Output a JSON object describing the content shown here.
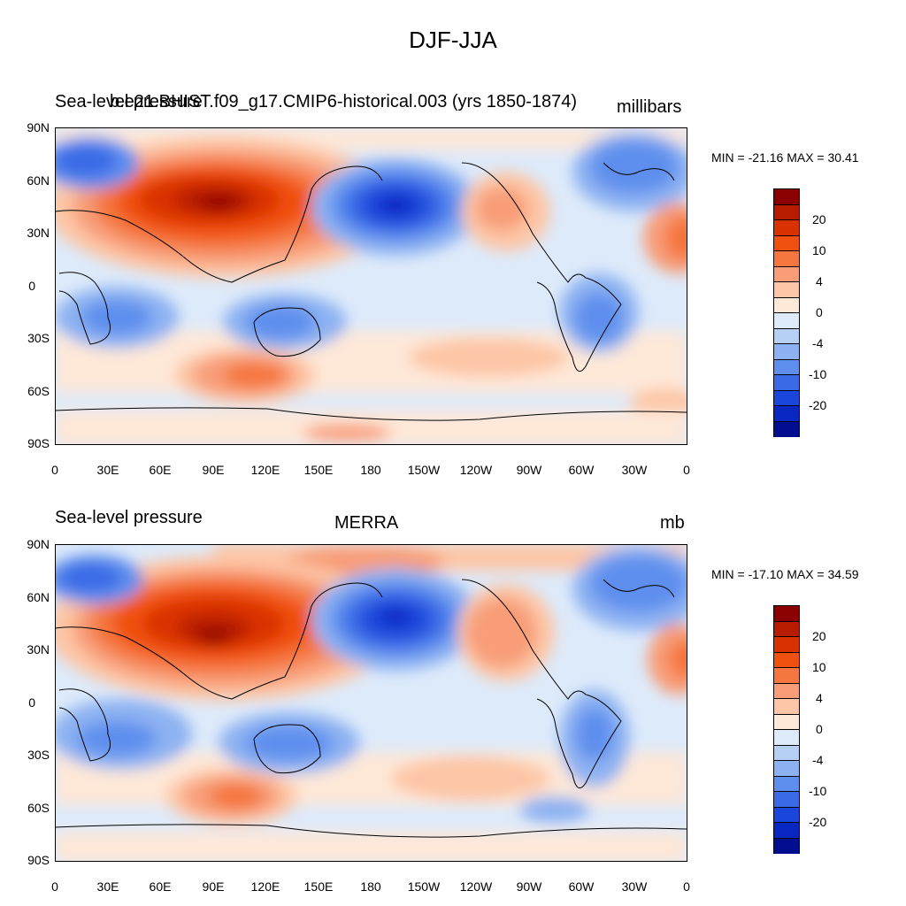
{
  "figure_title": "DJF-JJA",
  "colors": {
    "levels": [
      "#8b0000",
      "#b71c00",
      "#d93100",
      "#f05010",
      "#f5763e",
      "#f89d78",
      "#fdc6a6",
      "#fee8d8",
      "#ddeafa",
      "#b6d0f5",
      "#8db2f2",
      "#5e8fee",
      "#3a6ae6",
      "#1a46dc",
      "#0928c1",
      "#000e8f"
    ]
  },
  "panels": [
    {
      "left_title": "Sea-level pressure",
      "center_title": "b.e21.BHIST.f09_g17.CMIP6-historical.003 (yrs 1850-1874)",
      "right_title": "millibars",
      "stats": "MIN = -21.16 MAX =  30.41",
      "colorbar_labels": [
        "20",
        "10",
        "4",
        "0",
        "-4",
        "-10",
        "-20"
      ]
    },
    {
      "left_title": "Sea-level pressure",
      "center_title": "MERRA",
      "right_title": "mb",
      "stats": "MIN = -17.10 MAX =  34.59",
      "colorbar_labels": [
        "20",
        "10",
        "4",
        "0",
        "-4",
        "-10",
        "-20"
      ]
    }
  ],
  "lat_ticks": [
    "90N",
    "60N",
    "30N",
    "0",
    "30S",
    "60S",
    "90S"
  ],
  "lon_ticks": [
    "0",
    "30E",
    "60E",
    "90E",
    "120E",
    "150E",
    "180",
    "150W",
    "120W",
    "90W",
    "60W",
    "30W",
    "0"
  ],
  "map_content": {
    "features": [
      "siberian-high",
      "aleutian-low",
      "north-america-high",
      "south-atlantic-high",
      "south-indian-high",
      "australia-low",
      "south-america-low",
      "africa-low",
      "greenland-low"
    ]
  }
}
